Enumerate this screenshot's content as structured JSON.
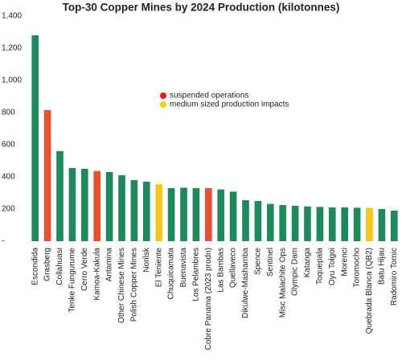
{
  "chart_data": {
    "type": "bar",
    "title": "Top-30 Copper Mines by 2024 Production (kilotonnes)",
    "categories": [
      "Escondida",
      "Grasberg",
      "Collahuasi",
      "Tenke Fungurume",
      "Cerro Verde",
      "Kamoa-Kakula",
      "Antamina",
      "Other Chinese Mines",
      "Polish Copper Mines",
      "Norilsk",
      "El Teniente",
      "Chuquicamata",
      "Buenavista",
      "Los Pelambres",
      "Cobre Panama (2023 prodn)",
      "Las Bambas",
      "Quellaveco",
      "Dikulwe-Mashamba",
      "Spence",
      "Sentinel",
      "Misc Malachite Ops",
      "Olympic Dam",
      "Katanga",
      "Toquepala",
      "Oyu Tolgoi",
      "Morenci",
      "Toromocho",
      "Quebrada Blanca (QB2)",
      "Batu Hijau",
      "Radomiro Tomic"
    ],
    "values": [
      1280,
      815,
      560,
      455,
      450,
      437,
      430,
      410,
      380,
      370,
      355,
      330,
      333,
      330,
      330,
      322,
      308,
      255,
      250,
      232,
      225,
      220,
      216,
      213,
      210,
      210,
      208,
      207,
      200,
      190
    ],
    "colors": [
      "#1e8a5b",
      "#e8512e",
      "#1e8a5b",
      "#1e8a5b",
      "#1e8a5b",
      "#e8512e",
      "#1e8a5b",
      "#1e8a5b",
      "#1e8a5b",
      "#1e8a5b",
      "#f5c518",
      "#1e8a5b",
      "#1e8a5b",
      "#1e8a5b",
      "#e8512e",
      "#1e8a5b",
      "#1e8a5b",
      "#1e8a5b",
      "#1e8a5b",
      "#1e8a5b",
      "#1e8a5b",
      "#1e8a5b",
      "#1e8a5b",
      "#1e8a5b",
      "#1e8a5b",
      "#1e8a5b",
      "#1e8a5b",
      "#f5c518",
      "#1e8a5b",
      "#1e8a5b"
    ],
    "legend": [
      {
        "label": "suspended operations",
        "color": "#e8190f"
      },
      {
        "label": "medium sized production impacts",
        "color": "#f5d000"
      }
    ],
    "ylim": [
      0,
      1400
    ],
    "yticks": [
      {
        "value": 0,
        "label": "-"
      },
      200,
      400,
      600,
      800,
      {
        "value": 1000,
        "label": "1,000"
      },
      {
        "value": 1200,
        "label": "1,200"
      },
      {
        "value": 1400,
        "label": "1,400"
      }
    ]
  }
}
